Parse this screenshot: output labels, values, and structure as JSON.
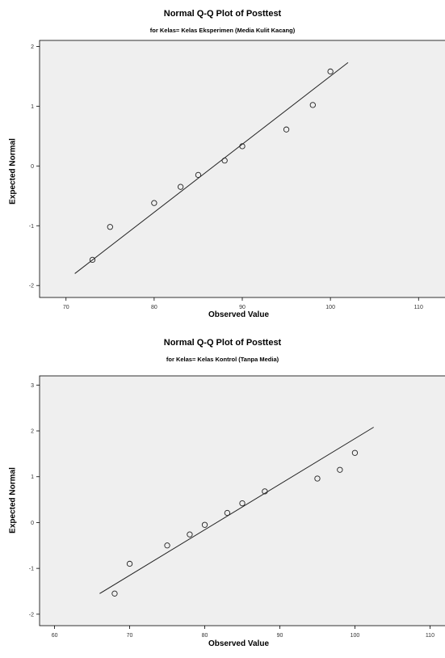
{
  "chart_data": [
    {
      "type": "scatter",
      "title": "Normal Q-Q Plot of Posttest",
      "subtitle": "for Kelas= Kelas Eksperimen (Media Kulit Kacang)",
      "xlabel": "Observed Value",
      "ylabel": "Expected Normal",
      "xlim": [
        67,
        113
      ],
      "ylim": [
        -2.2,
        2.1
      ],
      "xticks": [
        70,
        80,
        90,
        100,
        110
      ],
      "yticks": [
        -2,
        -1,
        0,
        1,
        2
      ],
      "grid": false,
      "points": [
        {
          "x": 73,
          "y": -1.57
        },
        {
          "x": 75,
          "y": -1.02
        },
        {
          "x": 80,
          "y": -0.62
        },
        {
          "x": 83,
          "y": -0.35
        },
        {
          "x": 85,
          "y": -0.15
        },
        {
          "x": 88,
          "y": 0.09
        },
        {
          "x": 90,
          "y": 0.33
        },
        {
          "x": 95,
          "y": 0.61
        },
        {
          "x": 98,
          "y": 1.02
        },
        {
          "x": 100,
          "y": 1.58
        }
      ],
      "reference_line": {
        "x": [
          71,
          102
        ],
        "y": [
          -1.8,
          1.73
        ]
      }
    },
    {
      "type": "scatter",
      "title": "Normal Q-Q Plot of Posttest",
      "subtitle": "for Kelas= Kelas Kontrol (Tanpa Media)",
      "xlabel": "Observed Value",
      "ylabel": "Expected Normal",
      "xlim": [
        58,
        112
      ],
      "ylim": [
        -2.25,
        3.2
      ],
      "xticks": [
        60,
        70,
        80,
        90,
        100,
        110
      ],
      "yticks": [
        -2,
        -1,
        0,
        1,
        2,
        3
      ],
      "grid": false,
      "points": [
        {
          "x": 68,
          "y": -1.55
        },
        {
          "x": 70,
          "y": -0.9
        },
        {
          "x": 75,
          "y": -0.5
        },
        {
          "x": 78,
          "y": -0.26
        },
        {
          "x": 80,
          "y": -0.05
        },
        {
          "x": 83,
          "y": 0.21
        },
        {
          "x": 85,
          "y": 0.42
        },
        {
          "x": 88,
          "y": 0.68
        },
        {
          "x": 95,
          "y": 0.96
        },
        {
          "x": 98,
          "y": 1.15
        },
        {
          "x": 100,
          "y": 1.52
        }
      ],
      "reference_line": {
        "x": [
          66,
          102.5
        ],
        "y": [
          -1.55,
          2.08
        ]
      }
    }
  ]
}
